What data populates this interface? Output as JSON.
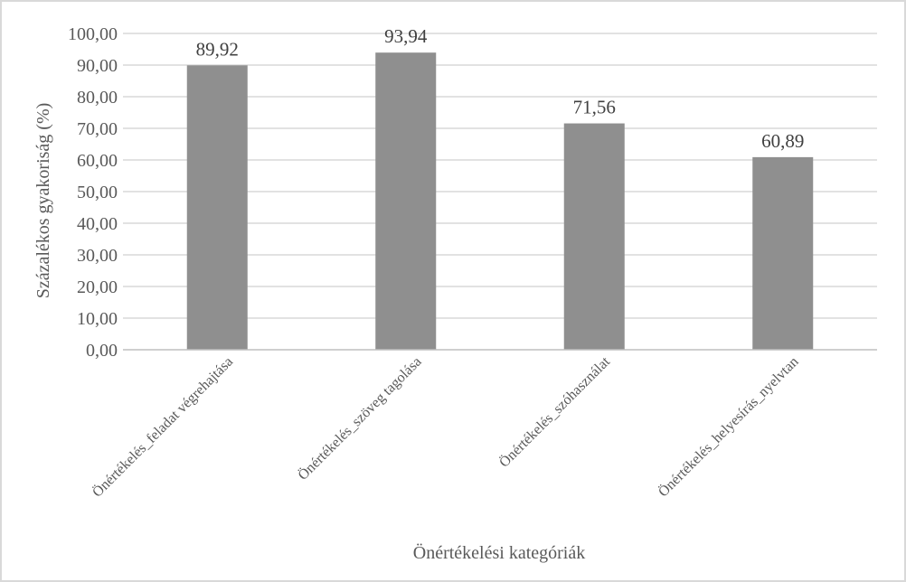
{
  "colors": {
    "bar": "#8f8f8f",
    "gridline": "#d9d9d9",
    "axis_line": "#bfbfbf",
    "text": "#595959",
    "frame_border": "#d9d9d9"
  },
  "chart_data": {
    "type": "bar",
    "title": "",
    "xlabel": "Önértékelési kategóriák",
    "ylabel": "Százalékos gyakoriság (%)",
    "ylim": [
      0,
      100
    ],
    "y_ticks": [
      0,
      10,
      20,
      30,
      40,
      50,
      60,
      70,
      80,
      90,
      100
    ],
    "y_tick_labels": [
      "0,00",
      "10,00",
      "20,00",
      "30,00",
      "40,00",
      "50,00",
      "60,00",
      "70,00",
      "80,00",
      "90,00",
      "100,00"
    ],
    "grid": true,
    "legend": "none",
    "categories": [
      "Önértékelés_feladat végrehajtása",
      "Önértékelés_szöveg tagolása",
      "Önértékelés_szóhasználat",
      "Önértékelés_helyesírás_nyelvtan"
    ],
    "values": [
      89.92,
      93.94,
      71.56,
      60.89
    ],
    "data_labels": [
      "89,92",
      "93,94",
      "71,56",
      "60,89"
    ]
  }
}
